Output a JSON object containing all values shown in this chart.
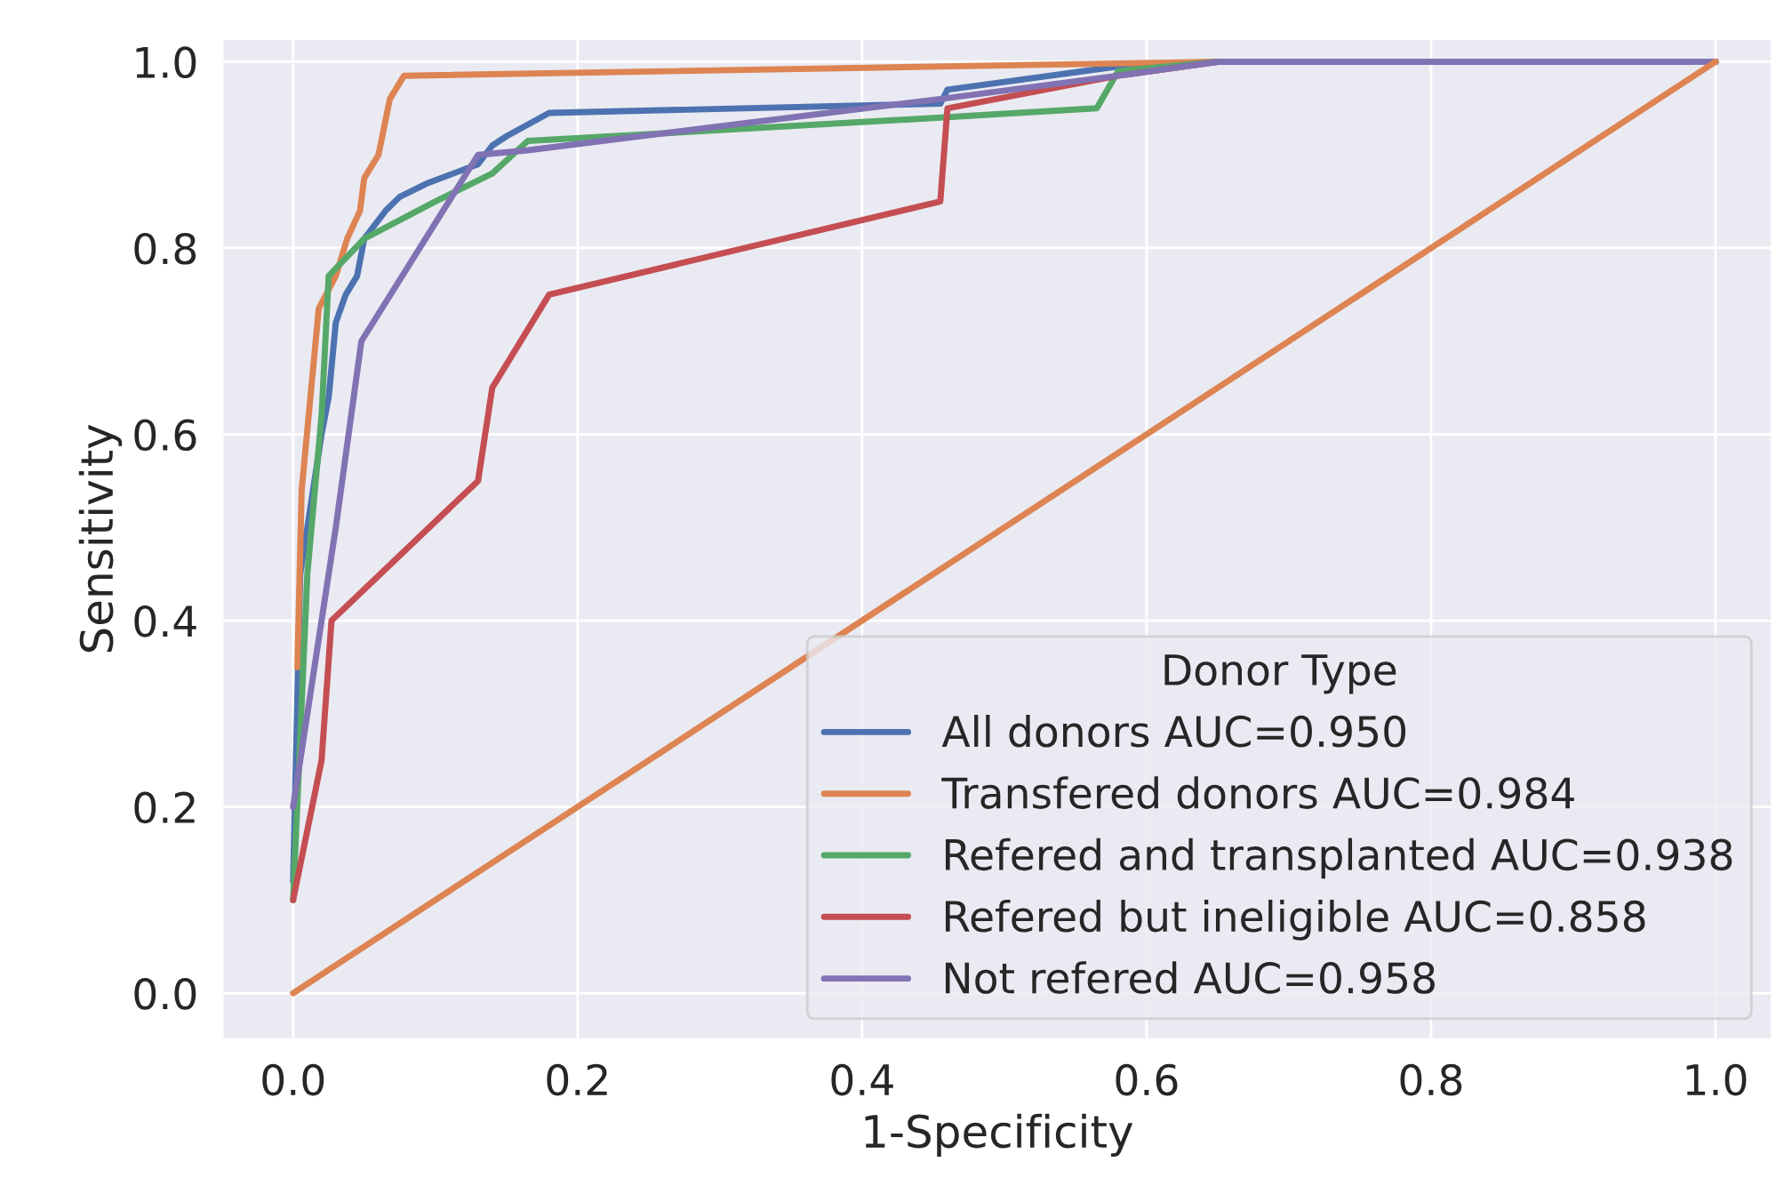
{
  "chart_data": {
    "type": "line",
    "xlabel": "1-Specificity",
    "ylabel": "Sensitivity",
    "legend_title": "Donor Type",
    "legend": "bottom right",
    "grid": true,
    "xlim": [
      -0.05,
      1.04
    ],
    "ylim": [
      -0.05,
      1.025
    ],
    "xticks": [
      {
        "value": 0,
        "label": "0.0"
      },
      0.2,
      0.4,
      0.6,
      0.8,
      {
        "value": 1,
        "label": "1.0"
      }
    ],
    "yticks": [
      {
        "value": 0,
        "label": "0.0"
      },
      0.2,
      0.4,
      0.6,
      0.8,
      {
        "value": 1,
        "label": "1.0"
      }
    ],
    "series": [
      {
        "name": "All donors AUC=0.950",
        "color": "#4c72b0",
        "x": [
          0,
          0.005,
          0.02,
          0.025,
          0.03,
          0.037,
          0.045,
          0.05,
          0.065,
          0.075,
          0.095,
          0.13,
          0.14,
          0.15,
          0.18,
          0.455,
          0.46,
          0.58,
          0.65,
          1
        ],
        "values": [
          0.12,
          0.45,
          0.6,
          0.64,
          0.72,
          0.75,
          0.77,
          0.81,
          0.84,
          0.855,
          0.87,
          0.89,
          0.91,
          0.92,
          0.945,
          0.955,
          0.97,
          0.995,
          1,
          1
        ]
      },
      {
        "name": "Transfered donors AUC=0.984",
        "color": "#dd8452",
        "x": [
          0.003,
          0.006,
          0.018,
          0.03,
          0.038,
          0.047,
          0.05,
          0.06,
          0.068,
          0.078,
          0.65,
          1
        ],
        "values": [
          0.35,
          0.54,
          0.735,
          0.77,
          0.81,
          0.84,
          0.875,
          0.9,
          0.96,
          0.985,
          1,
          1
        ]
      },
      {
        "name": "Refered and transplanted AUC=0.938",
        "color": "#55a868",
        "x": [
          0,
          0.01,
          0.02,
          0.025,
          0.05,
          0.1,
          0.14,
          0.165,
          0.455,
          0.565,
          0.58,
          0.65,
          1
        ],
        "values": [
          0.1,
          0.45,
          0.62,
          0.77,
          0.81,
          0.85,
          0.88,
          0.915,
          0.94,
          0.95,
          0.99,
          1,
          1
        ]
      },
      {
        "name": "Refered but ineligible AUC=0.858",
        "color": "#c44e52",
        "x": [
          0,
          0.02,
          0.027,
          0.13,
          0.14,
          0.18,
          0.455,
          0.46,
          0.58,
          0.65,
          1
        ],
        "values": [
          0.1,
          0.25,
          0.4,
          0.55,
          0.65,
          0.75,
          0.85,
          0.95,
          0.985,
          1,
          1
        ]
      },
      {
        "name": "Not refered AUC=0.958",
        "color": "#8172b3",
        "x": [
          0,
          0.03,
          0.048,
          0.13,
          0.165,
          0.455,
          0.58,
          0.65,
          1
        ],
        "values": [
          0.2,
          0.5,
          0.7,
          0.9,
          0.905,
          0.96,
          0.985,
          1,
          1
        ]
      },
      {
        "color": "#dd8452",
        "x": [
          0,
          1
        ],
        "values": [
          0,
          1
        ]
      }
    ]
  }
}
